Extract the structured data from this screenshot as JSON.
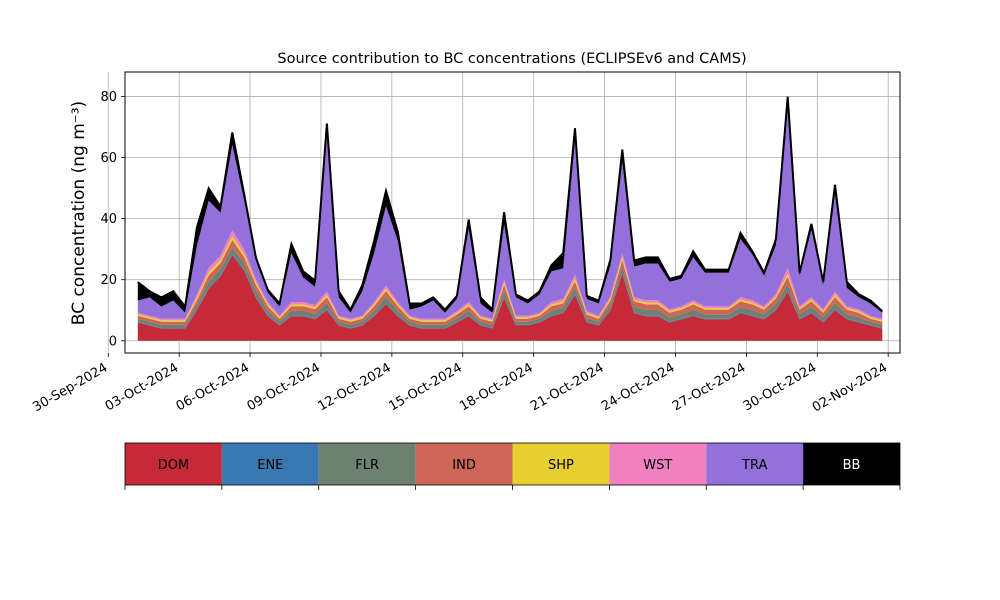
{
  "chart_data": {
    "type": "area",
    "title": "Source contribution to BC concentrations (ECLIPSEv6 and CAMS)",
    "ylabel": "BC concentration (ng m⁻³)",
    "xlabel": "",
    "ylim": [
      -4,
      88
    ],
    "xlim": [
      "2024-09-30T17:00",
      "2024-11-02T12:00"
    ],
    "yticks": [
      0,
      20,
      40,
      60,
      80
    ],
    "xticks": [
      "30-Sep-2024",
      "03-Oct-2024",
      "06-Oct-2024",
      "09-Oct-2024",
      "12-Oct-2024",
      "15-Oct-2024",
      "18-Oct-2024",
      "21-Oct-2024",
      "24-Oct-2024",
      "27-Oct-2024",
      "30-Oct-2024",
      "02-Nov-2024"
    ],
    "grid": true,
    "legend_position": "bottom",
    "x": [
      "2024-10-01T06:00",
      "2024-10-01T18:00",
      "2024-10-02T06:00",
      "2024-10-02T18:00",
      "2024-10-03T06:00",
      "2024-10-03T18:00",
      "2024-10-04T06:00",
      "2024-10-04T18:00",
      "2024-10-05T06:00",
      "2024-10-05T18:00",
      "2024-10-06T06:00",
      "2024-10-06T18:00",
      "2024-10-07T06:00",
      "2024-10-07T18:00",
      "2024-10-08T06:00",
      "2024-10-08T18:00",
      "2024-10-09T06:00",
      "2024-10-09T18:00",
      "2024-10-10T06:00",
      "2024-10-10T18:00",
      "2024-10-11T06:00",
      "2024-10-11T18:00",
      "2024-10-12T06:00",
      "2024-10-12T18:00",
      "2024-10-13T06:00",
      "2024-10-13T18:00",
      "2024-10-14T06:00",
      "2024-10-14T18:00",
      "2024-10-15T06:00",
      "2024-10-15T18:00",
      "2024-10-16T06:00",
      "2024-10-16T18:00",
      "2024-10-17T06:00",
      "2024-10-17T18:00",
      "2024-10-18T06:00",
      "2024-10-18T18:00",
      "2024-10-19T06:00",
      "2024-10-19T18:00",
      "2024-10-20T06:00",
      "2024-10-20T18:00",
      "2024-10-21T06:00",
      "2024-10-21T18:00",
      "2024-10-22T06:00",
      "2024-10-22T18:00",
      "2024-10-23T06:00",
      "2024-10-23T18:00",
      "2024-10-24T06:00",
      "2024-10-24T18:00",
      "2024-10-25T06:00",
      "2024-10-25T18:00",
      "2024-10-26T06:00",
      "2024-10-26T18:00",
      "2024-10-27T06:00",
      "2024-10-27T18:00",
      "2024-10-28T06:00",
      "2024-10-28T18:00",
      "2024-10-29T06:00",
      "2024-10-29T18:00",
      "2024-10-30T06:00",
      "2024-10-30T18:00",
      "2024-10-31T06:00",
      "2024-10-31T18:00",
      "2024-11-01T06:00",
      "2024-11-01T18:00"
    ],
    "series": [
      {
        "name": "DOM",
        "color": "#c62a38",
        "values": [
          6,
          5,
          4,
          4,
          4,
          10,
          17,
          21,
          28,
          23,
          14,
          8,
          5,
          8,
          8,
          7,
          10,
          5,
          4,
          5,
          8,
          12,
          8,
          5,
          4,
          4,
          4,
          6,
          8,
          5,
          4,
          14,
          5,
          5,
          6,
          8,
          9,
          15,
          6,
          5,
          10,
          22,
          9,
          8,
          8,
          6,
          7,
          8,
          7,
          7,
          7,
          9,
          8,
          7,
          10,
          16,
          7,
          9,
          6,
          10,
          7,
          6,
          5,
          4
        ]
      },
      {
        "name": "ENE",
        "color": "#3a78b0",
        "values": [
          0.2,
          0.2,
          0.2,
          0.2,
          0.2,
          0.3,
          0.4,
          0.4,
          0.5,
          0.4,
          0.3,
          0.3,
          0.2,
          0.3,
          0.3,
          0.3,
          0.3,
          0.2,
          0.2,
          0.2,
          0.3,
          0.3,
          0.3,
          0.2,
          0.2,
          0.2,
          0.2,
          0.2,
          0.3,
          0.2,
          0.2,
          0.3,
          0.2,
          0.2,
          0.2,
          0.3,
          0.3,
          0.4,
          0.2,
          0.2,
          0.3,
          0.4,
          0.3,
          0.3,
          0.3,
          0.2,
          0.2,
          0.3,
          0.2,
          0.2,
          0.2,
          0.3,
          0.3,
          0.2,
          0.3,
          0.4,
          0.2,
          0.3,
          0.2,
          0.3,
          0.2,
          0.2,
          0.2,
          0.2
        ]
      },
      {
        "name": "FLR",
        "color": "#6e8070",
        "values": [
          1,
          1,
          1,
          1,
          1,
          1.5,
          2,
          2,
          2,
          2,
          2,
          1.5,
          1,
          1.5,
          1.5,
          1.5,
          2,
          1,
          1,
          1,
          1.5,
          2,
          1.5,
          1,
          1,
          1,
          1,
          1.2,
          1.5,
          1,
          1,
          2,
          1,
          1,
          1,
          1.5,
          1.5,
          2,
          1.2,
          1,
          1.5,
          2,
          1.8,
          1.8,
          1.8,
          1.5,
          1.5,
          1.8,
          1.5,
          1.5,
          1.5,
          1.8,
          1.8,
          1.5,
          1.8,
          2,
          1.5,
          1.8,
          1.5,
          2,
          1.5,
          1.5,
          1,
          1
        ]
      },
      {
        "name": "IND",
        "color": "#cc6657",
        "values": [
          1,
          1,
          1,
          1,
          1,
          1.5,
          2,
          2,
          2.5,
          2,
          2,
          1.5,
          1,
          1.5,
          1.5,
          1.5,
          2,
          1,
          1,
          1,
          1.5,
          2,
          1.5,
          1,
          1,
          1,
          1,
          1.2,
          1.5,
          1,
          1,
          2,
          1,
          1,
          1,
          1.5,
          1.5,
          2,
          1.2,
          1,
          1.5,
          2,
          1.8,
          1.8,
          1.8,
          1.5,
          1.5,
          1.8,
          1.5,
          1.5,
          1.5,
          1.8,
          1.8,
          1.5,
          1.8,
          2.5,
          1.5,
          1.8,
          1.5,
          2,
          1.5,
          1.5,
          1,
          1
        ]
      },
      {
        "name": "SHP",
        "color": "#e8cf30",
        "values": [
          0.5,
          0.5,
          0.5,
          0.5,
          0.5,
          0.8,
          1,
          1,
          1.2,
          1,
          0.8,
          0.6,
          0.5,
          0.6,
          0.6,
          0.6,
          0.8,
          0.5,
          0.5,
          0.5,
          0.6,
          0.8,
          0.6,
          0.5,
          0.5,
          0.5,
          0.5,
          0.5,
          0.6,
          0.5,
          0.5,
          0.8,
          0.5,
          0.5,
          0.5,
          0.6,
          0.6,
          1,
          0.5,
          0.5,
          0.6,
          1,
          0.6,
          0.6,
          0.6,
          0.5,
          0.5,
          0.6,
          0.5,
          0.5,
          0.5,
          0.6,
          0.6,
          0.5,
          0.6,
          1,
          0.5,
          0.6,
          0.5,
          0.8,
          0.5,
          0.5,
          0.5,
          0.5
        ]
      },
      {
        "name": "WST",
        "color": "#f080c0",
        "values": [
          0.5,
          0.5,
          0.5,
          0.5,
          0.5,
          1,
          1.5,
          1.5,
          2,
          1.5,
          1,
          0.8,
          0.5,
          0.8,
          0.8,
          0.8,
          1,
          0.5,
          0.5,
          0.5,
          0.8,
          1,
          0.8,
          0.5,
          0.5,
          0.5,
          0.5,
          0.6,
          0.8,
          0.5,
          0.5,
          1,
          0.5,
          0.5,
          0.5,
          0.8,
          0.8,
          1.2,
          0.6,
          0.5,
          0.8,
          1.2,
          0.8,
          0.8,
          0.8,
          0.6,
          0.6,
          0.8,
          0.6,
          0.6,
          0.6,
          0.8,
          0.8,
          0.6,
          0.8,
          2,
          0.6,
          0.8,
          0.6,
          1,
          0.6,
          0.6,
          0.5,
          0.5
        ]
      },
      {
        "name": "TRA",
        "color": "#9370db",
        "values": [
          4,
          6,
          4,
          6,
          2,
          16,
          22,
          14,
          28,
          16,
          6,
          3,
          3,
          16,
          8,
          6,
          52,
          6,
          2,
          8,
          16,
          26,
          20,
          2,
          4,
          6,
          2,
          4,
          24,
          4,
          2,
          18,
          6,
          4,
          6,
          10,
          10,
          44,
          4,
          4,
          10,
          30,
          10,
          12,
          12,
          9,
          9,
          14,
          11,
          11,
          11,
          19,
          15,
          10,
          16,
          52,
          10,
          22,
          8,
          32,
          6,
          4,
          4,
          2
        ]
      },
      {
        "name": "BB",
        "color": "#000000",
        "values": [
          6,
          2,
          3,
          3,
          2,
          6,
          4,
          2,
          4,
          2,
          1,
          1,
          1,
          3,
          2,
          2,
          3,
          2,
          1,
          2,
          4,
          5,
          3,
          2,
          1,
          1,
          1,
          1,
          3,
          2,
          1,
          4,
          1,
          1,
          1,
          2,
          5,
          4,
          1,
          1,
          2,
          4,
          2,
          2,
          2,
          1,
          1,
          2,
          1,
          1,
          1,
          2,
          1,
          1,
          2,
          4,
          1,
          2,
          1,
          3,
          2,
          1,
          1,
          0.5
        ]
      }
    ]
  }
}
